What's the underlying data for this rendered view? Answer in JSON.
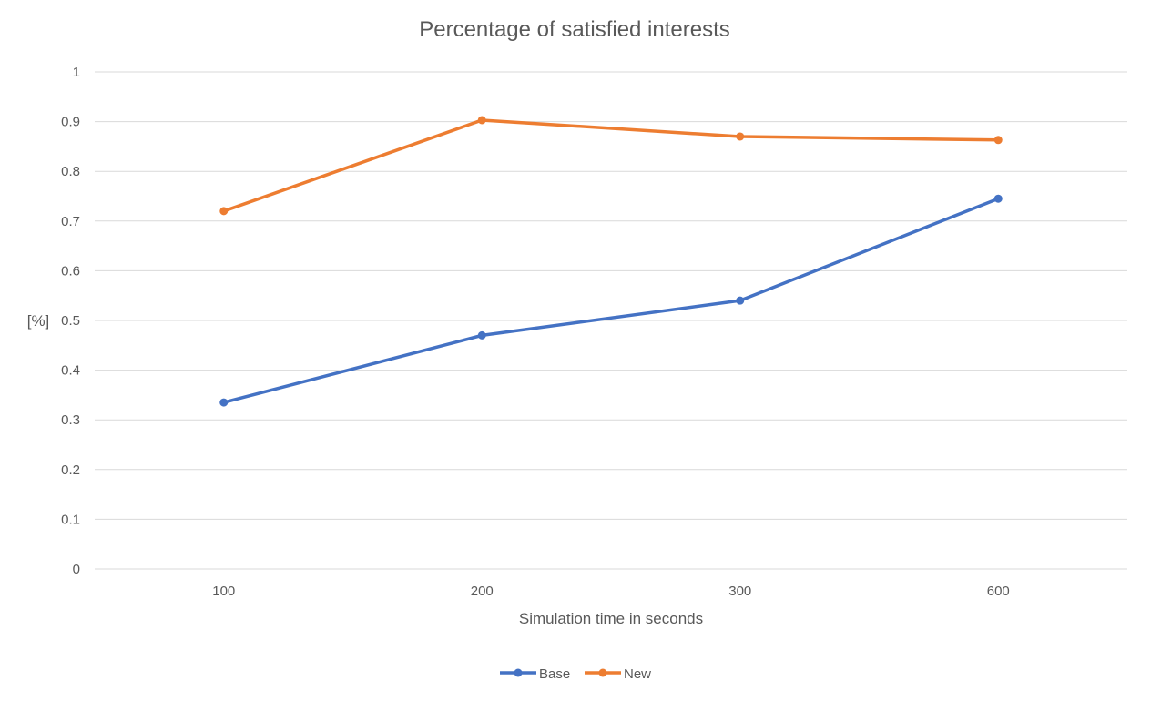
{
  "chart_data": {
    "type": "line",
    "title": "Percentage of satisfied interests",
    "xlabel": "Simulation time in seconds",
    "ylabel": "[%]",
    "categories": [
      "100",
      "200",
      "300",
      "600"
    ],
    "ylim": [
      0,
      1
    ],
    "yticks": [
      "0",
      "0.1",
      "0.2",
      "0.3",
      "0.4",
      "0.5",
      "0.6",
      "0.7",
      "0.8",
      "0.9",
      "1"
    ],
    "grid": true,
    "legend": "bottom",
    "series": [
      {
        "name": "Base",
        "color": "#4472C4",
        "values": [
          0.335,
          0.47,
          0.54,
          0.745
        ]
      },
      {
        "name": "New",
        "color": "#ED7D31",
        "values": [
          0.72,
          0.903,
          0.87,
          0.863
        ]
      }
    ]
  }
}
